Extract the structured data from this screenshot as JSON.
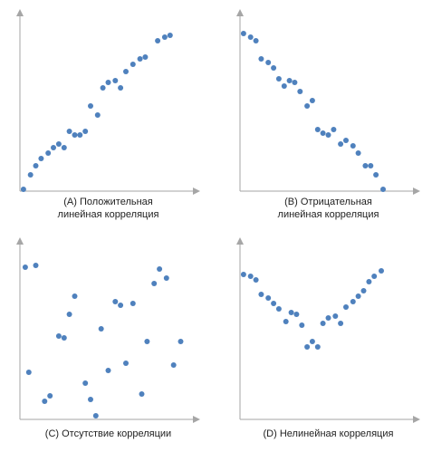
{
  "colors": {
    "point": "#4f81bd",
    "axis": "#a6a6a6"
  },
  "chart_data": [
    {
      "type": "scatter",
      "caption": [
        "(A) Положительная",
        "линейная корреляция"
      ],
      "xlim": [
        0,
        100
      ],
      "ylim": [
        0,
        100
      ],
      "points": [
        [
          2,
          1
        ],
        [
          6,
          9
        ],
        [
          9,
          14
        ],
        [
          12,
          18
        ],
        [
          16,
          21
        ],
        [
          19,
          24
        ],
        [
          22,
          26
        ],
        [
          25,
          24
        ],
        [
          28,
          33
        ],
        [
          31,
          31
        ],
        [
          34,
          31
        ],
        [
          37,
          33
        ],
        [
          40,
          47
        ],
        [
          44,
          42
        ],
        [
          47,
          57
        ],
        [
          50,
          60
        ],
        [
          54,
          61
        ],
        [
          57,
          57
        ],
        [
          60,
          66
        ],
        [
          64,
          70
        ],
        [
          68,
          73
        ],
        [
          71,
          74
        ],
        [
          78,
          83
        ],
        [
          82,
          85
        ],
        [
          85,
          86
        ]
      ]
    },
    {
      "type": "scatter",
      "caption": [
        "(B) Отрицательная",
        "линейная корреляция"
      ],
      "xlim": [
        0,
        100
      ],
      "ylim": [
        0,
        100
      ],
      "points": [
        [
          2,
          87
        ],
        [
          6,
          85
        ],
        [
          9,
          83
        ],
        [
          12,
          73
        ],
        [
          16,
          71
        ],
        [
          19,
          68
        ],
        [
          22,
          62
        ],
        [
          25,
          58
        ],
        [
          28,
          61
        ],
        [
          31,
          60
        ],
        [
          34,
          55
        ],
        [
          38,
          47
        ],
        [
          41,
          50
        ],
        [
          44,
          34
        ],
        [
          47,
          32
        ],
        [
          50,
          31
        ],
        [
          53,
          34
        ],
        [
          57,
          26
        ],
        [
          60,
          28
        ],
        [
          64,
          25
        ],
        [
          67,
          21
        ],
        [
          71,
          14
        ],
        [
          74,
          14
        ],
        [
          77,
          9
        ],
        [
          81,
          1
        ]
      ]
    },
    {
      "type": "scatter",
      "caption": [
        "(C) Отсутствие корреляции"
      ],
      "xlim": [
        0,
        100
      ],
      "ylim": [
        0,
        100
      ],
      "points": [
        [
          3,
          84
        ],
        [
          9,
          85
        ],
        [
          5,
          26
        ],
        [
          14,
          10
        ],
        [
          17,
          13
        ],
        [
          22,
          46
        ],
        [
          25,
          45
        ],
        [
          28,
          58
        ],
        [
          31,
          68
        ],
        [
          37,
          20
        ],
        [
          40,
          11
        ],
        [
          43,
          2
        ],
        [
          46,
          50
        ],
        [
          50,
          27
        ],
        [
          54,
          65
        ],
        [
          57,
          63
        ],
        [
          60,
          31
        ],
        [
          64,
          64
        ],
        [
          69,
          14
        ],
        [
          72,
          43
        ],
        [
          76,
          75
        ],
        [
          79,
          83
        ],
        [
          83,
          78
        ],
        [
          87,
          30
        ],
        [
          91,
          43
        ]
      ]
    },
    {
      "type": "scatter",
      "caption": [
        "(D) Нелинейная корреляция"
      ],
      "xlim": [
        0,
        100
      ],
      "ylim": [
        0,
        100
      ],
      "points": [
        [
          2,
          80
        ],
        [
          6,
          79
        ],
        [
          9,
          77
        ],
        [
          12,
          69
        ],
        [
          16,
          67
        ],
        [
          19,
          64
        ],
        [
          22,
          61
        ],
        [
          26,
          54
        ],
        [
          29,
          59
        ],
        [
          32,
          58
        ],
        [
          35,
          52
        ],
        [
          38,
          40
        ],
        [
          41,
          43
        ],
        [
          44,
          40
        ],
        [
          47,
          53
        ],
        [
          50,
          56
        ],
        [
          54,
          57
        ],
        [
          57,
          53
        ],
        [
          60,
          62
        ],
        [
          64,
          65
        ],
        [
          67,
          68
        ],
        [
          70,
          71
        ],
        [
          73,
          76
        ],
        [
          76,
          79
        ],
        [
          80,
          82
        ]
      ]
    }
  ]
}
